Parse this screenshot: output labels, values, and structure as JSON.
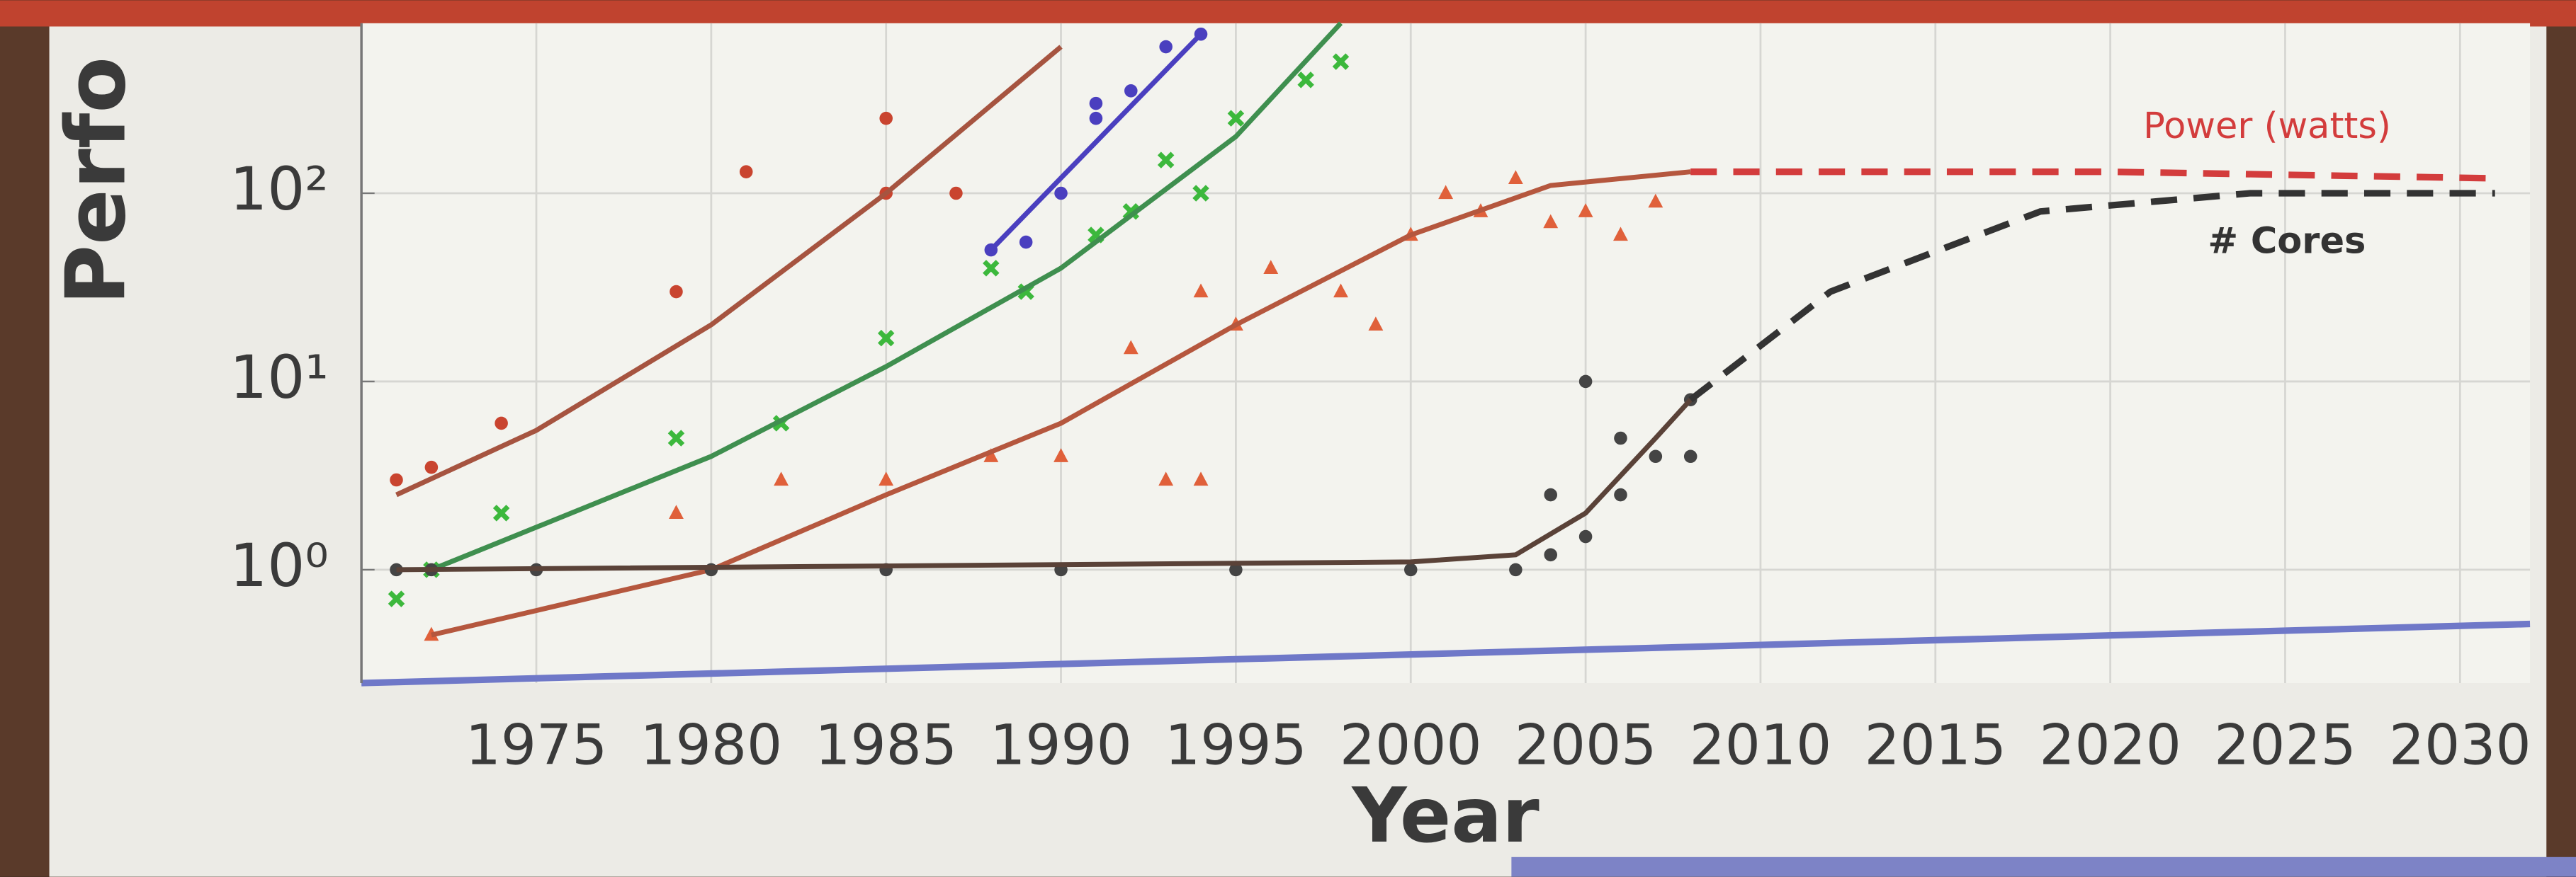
{
  "chart_data": {
    "type": "scatter",
    "xlabel": "Year",
    "ylabel": "Perfo",
    "annotations": [
      "Power (watts)",
      "# Cores"
    ],
    "xlim": [
      1970,
      2032
    ],
    "xticks": [
      1975,
      1980,
      1985,
      1990,
      1995,
      2000,
      2005,
      2010,
      2015,
      2020,
      2025,
      2030
    ],
    "ylim": [
      0.25,
      800
    ],
    "log_y": true,
    "yticks": [
      {
        "value": 1,
        "label": "10⁰"
      },
      {
        "value": 10,
        "label": "10¹"
      },
      {
        "value": 100,
        "label": "10²"
      }
    ],
    "grid": true,
    "series": [
      {
        "color": "#c9442f",
        "marker": "dot",
        "x": [
          1971,
          1972,
          1974,
          1979,
          1981,
          1985,
          1985,
          1987
        ],
        "values": [
          3,
          3.5,
          6,
          30,
          130,
          250,
          100,
          100
        ]
      },
      {
        "color": "#a65440",
        "marker": "none",
        "x": [
          1971,
          1975,
          1980,
          1985,
          1990
        ],
        "values": [
          2.5,
          5.5,
          20,
          100,
          600
        ]
      },
      {
        "color": "#4a3fbf",
        "marker": "dot",
        "x": [
          1988,
          1989,
          1990,
          1991,
          1991,
          1992,
          1993,
          1994
        ],
        "values": [
          50,
          55,
          100,
          250,
          300,
          350,
          600,
          700
        ]
      },
      {
        "color": "#4a3fbf",
        "marker": "none",
        "x": [
          1988,
          1994
        ],
        "values": [
          50,
          700
        ]
      },
      {
        "color": "#3cb83c",
        "marker": "x",
        "x": [
          1971,
          1972,
          1974,
          1979,
          1982,
          1985,
          1988,
          1989,
          1991,
          1992,
          1993,
          1994,
          1995,
          1997,
          1998
        ],
        "values": [
          0.7,
          1,
          2,
          5,
          6,
          17,
          40,
          30,
          60,
          80,
          150,
          100,
          250,
          400,
          500
        ]
      },
      {
        "color": "#3f8f4f",
        "marker": "none",
        "x": [
          1972,
          1980,
          1985,
          1990,
          1995,
          1998
        ],
        "values": [
          1,
          4,
          12,
          40,
          200,
          800
        ]
      },
      {
        "color": "#e0603a",
        "marker": "triangle",
        "x": [
          1972,
          1979,
          1982,
          1985,
          1988,
          1990,
          1992,
          1993,
          1994,
          1994,
          1995,
          1996,
          1998,
          1999,
          2000,
          2001,
          2002,
          2003,
          2004,
          2005,
          2006,
          2007
        ],
        "values": [
          0.45,
          2,
          3,
          3,
          4,
          4,
          15,
          3,
          3,
          30,
          20,
          40,
          30,
          20,
          60,
          100,
          80,
          120,
          70,
          80,
          60,
          90
        ]
      },
      {
        "color": "#b5573e",
        "marker": "none",
        "x": [
          1972,
          1980,
          1985,
          1990,
          1995,
          2000,
          2004,
          2008
        ],
        "values": [
          0.45,
          1,
          2.5,
          6,
          20,
          60,
          110,
          130
        ]
      },
      {
        "color": "#d33c3c",
        "marker": "none",
        "dash": true,
        "x": [
          2008,
          2020,
          2031
        ],
        "values": [
          130,
          130,
          120
        ]
      },
      {
        "color": "#444444",
        "marker": "dot",
        "x": [
          1971,
          1972,
          1975,
          1980,
          1985,
          1990,
          1995,
          2000,
          2003,
          2004,
          2005,
          2004,
          2006,
          2006,
          2007,
          2008,
          2008,
          2005
        ],
        "values": [
          1,
          1,
          1,
          1,
          1,
          1,
          1,
          1,
          1,
          1.2,
          1.5,
          2.5,
          2.5,
          5,
          4,
          8,
          4,
          10
        ]
      },
      {
        "color": "#5a4238",
        "marker": "none",
        "x": [
          1971,
          2000,
          2003,
          2005,
          2007,
          2008
        ],
        "values": [
          1,
          1.1,
          1.2,
          2,
          5,
          8
        ]
      },
      {
        "color": "#333333",
        "marker": "none",
        "dash": true,
        "x": [
          2008,
          2012,
          2018,
          2024,
          2031
        ],
        "values": [
          8,
          30,
          80,
          100,
          100
        ]
      }
    ]
  }
}
